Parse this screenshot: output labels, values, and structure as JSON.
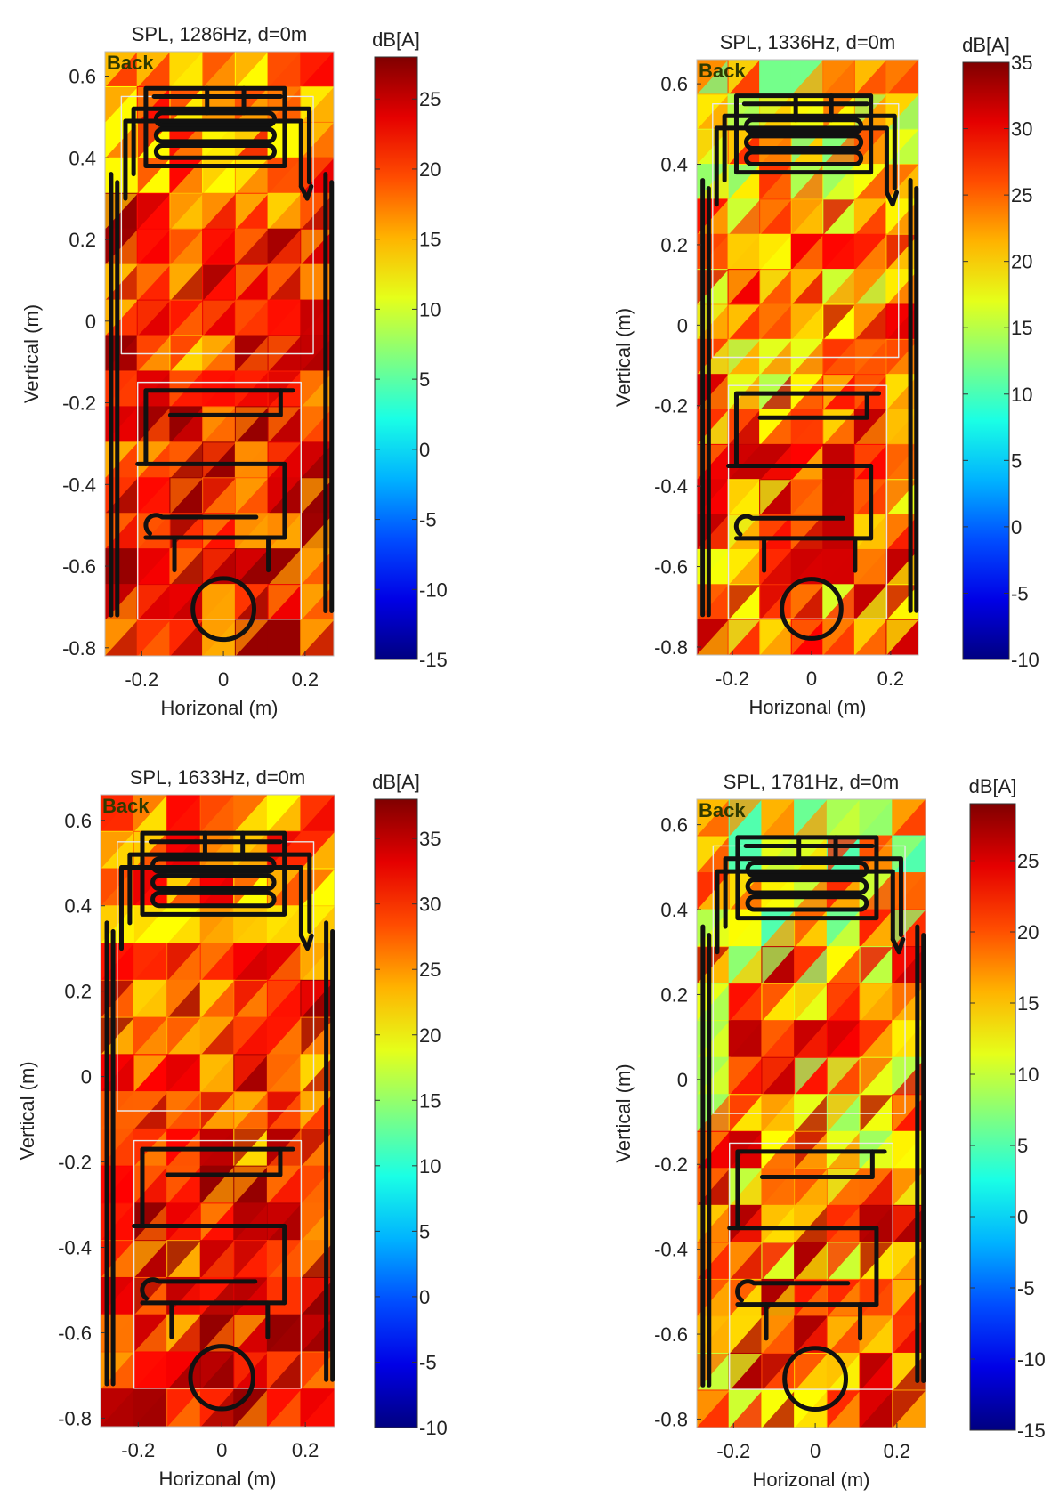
{
  "chart_data": [
    {
      "type": "heatmap",
      "title": "SPL, 1286Hz, d=0m",
      "overlay_label": "Back",
      "xlabel": "Horizonal (m)",
      "ylabel": "Vertical (m)",
      "x_ticks": [
        "-0.2",
        "0",
        "0.2"
      ],
      "y_ticks": [
        "0.6",
        "0.4",
        "0.2",
        "0",
        "-0.2",
        "-0.4",
        "-0.6",
        "-0.8"
      ],
      "xlim": [
        -0.29,
        0.27
      ],
      "ylim": [
        -0.82,
        0.66
      ],
      "colorbar": {
        "label": "dB[A]",
        "ticks": [
          "25",
          "20",
          "15",
          "10",
          "5",
          "0",
          "-5",
          "-10",
          "-15"
        ],
        "range": [
          -15,
          28
        ]
      },
      "field_range": [
        12,
        27
      ]
    },
    {
      "type": "heatmap",
      "title": "SPL, 1336Hz, d=0m",
      "overlay_label": "Back",
      "xlabel": "Horizonal (m)",
      "ylabel": "Vertical (m)",
      "x_ticks": [
        "-0.2",
        "0",
        "0.2"
      ],
      "y_ticks": [
        "0.6",
        "0.4",
        "0.2",
        "0",
        "-0.2",
        "-0.4",
        "-0.6",
        "-0.8"
      ],
      "xlim": [
        -0.29,
        0.27
      ],
      "ylim": [
        -0.82,
        0.66
      ],
      "colorbar": {
        "label": "dB[A]",
        "ticks": [
          "35",
          "30",
          "25",
          "20",
          "15",
          "10",
          "5",
          "0",
          "-5",
          "-10"
        ],
        "range": [
          -10,
          35
        ]
      },
      "field_range": [
        12,
        32
      ]
    },
    {
      "type": "heatmap",
      "title": "SPL, 1633Hz, d=0m",
      "overlay_label": "Back",
      "xlabel": "Horizonal (m)",
      "ylabel": "Vertical (m)",
      "x_ticks": [
        "-0.2",
        "0",
        "0.2"
      ],
      "y_ticks": [
        "0.6",
        "0.4",
        "0.2",
        "0",
        "-0.2",
        "-0.4",
        "-0.6",
        "-0.8"
      ],
      "xlim": [
        -0.29,
        0.27
      ],
      "ylim": [
        -0.82,
        0.66
      ],
      "colorbar": {
        "label": "dB[A]",
        "ticks": [
          "35",
          "30",
          "25",
          "20",
          "15",
          "10",
          "5",
          "0",
          "-5",
          "-10"
        ],
        "range": [
          -10,
          38
        ]
      },
      "field_range": [
        20,
        37
      ]
    },
    {
      "type": "heatmap",
      "title": "SPL, 1781Hz, d=0m",
      "overlay_label": "Back",
      "xlabel": "Horizonal (m)",
      "ylabel": "Vertical (m)",
      "x_ticks": [
        "-0.2",
        "0",
        "0.2"
      ],
      "y_ticks": [
        "0.6",
        "0.4",
        "0.2",
        "0",
        "-0.2",
        "-0.4",
        "-0.6",
        "-0.8"
      ],
      "xlim": [
        -0.29,
        0.27
      ],
      "ylim": [
        -0.82,
        0.66
      ],
      "colorbar": {
        "label": "dB[A]",
        "ticks": [
          "25",
          "20",
          "15",
          "10",
          "5",
          "0",
          "-5",
          "-10",
          "-15"
        ],
        "range": [
          -15,
          29
        ]
      },
      "field_range": [
        5,
        27
      ]
    }
  ]
}
